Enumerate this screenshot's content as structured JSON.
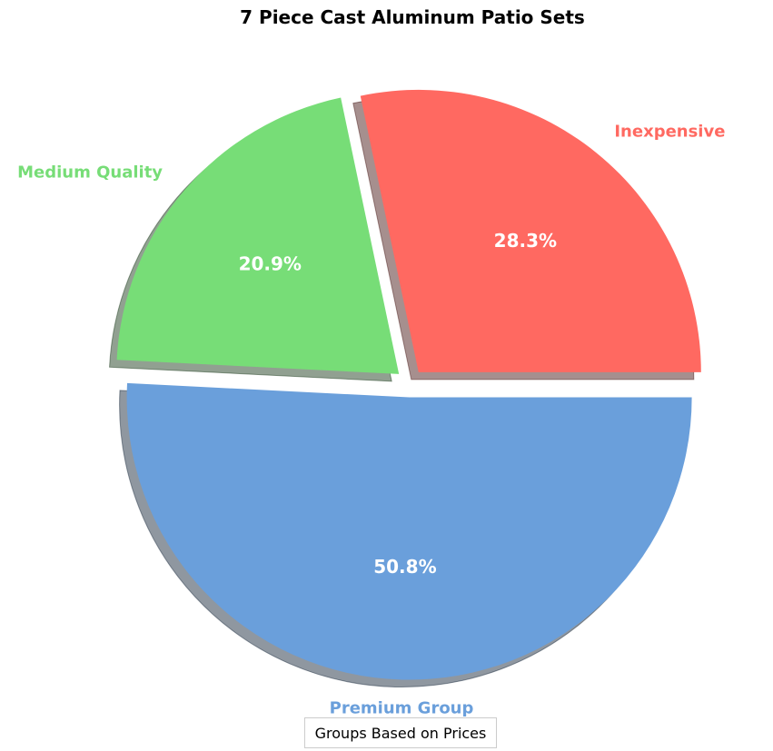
{
  "chart_data": {
    "type": "pie",
    "title": "7 Piece Cast Aluminum Patio Sets",
    "start_angle": 0,
    "direction": "counterclockwise",
    "shadow": true,
    "explode": [
      0.05,
      0.05,
      0.05
    ],
    "slices": [
      {
        "label": "Inexpensive",
        "value": 28.3,
        "pct_label": "28.3%",
        "color": "#ff6961"
      },
      {
        "label": "Medium Quality",
        "value": 20.9,
        "pct_label": "20.9%",
        "color": "#77dd77"
      },
      {
        "label": "Premium Group",
        "value": 50.8,
        "pct_label": "50.8%",
        "color": "#6a9fdb"
      }
    ],
    "legend": {
      "title": "Groups Based on Prices",
      "placement": "bottom-center"
    }
  }
}
